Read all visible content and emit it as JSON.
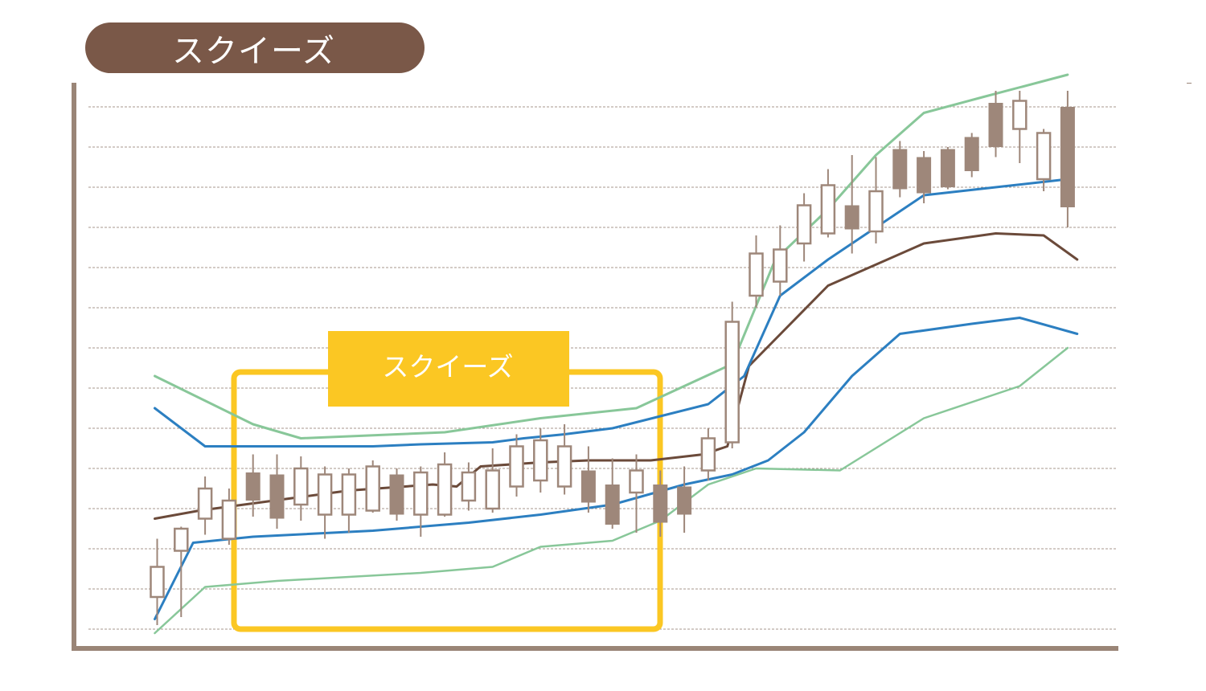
{
  "header": {
    "title": "スクイーズ"
  },
  "annotation": {
    "label": "スクイーズ",
    "frame_color": "#fbc723"
  },
  "colors": {
    "axis": "#9a8577",
    "grid": "#8a7568",
    "candle": "#9e877a",
    "sma": "#6b4a3a",
    "band_1sigma": "#2c7fc1",
    "band_2sigma": "#88c799"
  },
  "chart_data": {
    "type": "candlestick",
    "title": "スクイーズ",
    "xlabel": "",
    "ylabel": "",
    "ylim": [
      0,
      14
    ],
    "grid": true,
    "legend": "none",
    "candles": [
      {
        "x": 1,
        "open": 0.8,
        "close": 1.55,
        "high": 2.25,
        "low": 0.1
      },
      {
        "x": 2,
        "open": 1.95,
        "close": 2.5,
        "high": 2.55,
        "low": 0.3
      },
      {
        "x": 3,
        "open": 2.75,
        "close": 3.5,
        "high": 3.8,
        "low": 2.35
      },
      {
        "x": 4,
        "open": 2.25,
        "close": 3.2,
        "high": 3.5,
        "low": 2.1
      },
      {
        "x": 5,
        "open": 3.9,
        "close": 3.2,
        "high": 4.35,
        "low": 2.8
      },
      {
        "x": 6,
        "open": 3.85,
        "close": 2.75,
        "high": 4.35,
        "low": 2.5
      },
      {
        "x": 7,
        "open": 3.1,
        "close": 4.0,
        "high": 4.3,
        "low": 2.7
      },
      {
        "x": 8,
        "open": 2.85,
        "close": 3.85,
        "high": 4.05,
        "low": 2.25
      },
      {
        "x": 9,
        "open": 2.85,
        "close": 3.85,
        "high": 4.0,
        "low": 2.4
      },
      {
        "x": 10,
        "open": 2.95,
        "close": 4.05,
        "high": 4.2,
        "low": 2.9
      },
      {
        "x": 11,
        "open": 3.85,
        "close": 2.85,
        "high": 4.0,
        "low": 2.7
      },
      {
        "x": 12,
        "open": 2.85,
        "close": 3.9,
        "high": 4.05,
        "low": 2.3
      },
      {
        "x": 13,
        "open": 2.85,
        "close": 4.1,
        "high": 4.4,
        "low": 2.8
      },
      {
        "x": 14,
        "open": 3.2,
        "close": 3.9,
        "high": 4.15,
        "low": 2.95
      },
      {
        "x": 15,
        "open": 3.0,
        "close": 3.95,
        "high": 4.5,
        "low": 2.9
      },
      {
        "x": 16,
        "open": 3.55,
        "close": 4.55,
        "high": 4.85,
        "low": 3.3
      },
      {
        "x": 17,
        "open": 3.7,
        "close": 4.7,
        "high": 5.0,
        "low": 3.4
      },
      {
        "x": 18,
        "open": 3.55,
        "close": 4.55,
        "high": 5.1,
        "low": 3.35
      },
      {
        "x": 19,
        "open": 3.95,
        "close": 3.15,
        "high": 4.55,
        "low": 2.9
      },
      {
        "x": 20,
        "open": 3.6,
        "close": 2.6,
        "high": 4.25,
        "low": 2.5
      },
      {
        "x": 21,
        "open": 3.4,
        "close": 3.95,
        "high": 4.35,
        "low": 2.4
      },
      {
        "x": 22,
        "open": 3.6,
        "close": 2.65,
        "high": 3.95,
        "low": 2.3
      },
      {
        "x": 23,
        "open": 3.55,
        "close": 2.85,
        "high": 4.05,
        "low": 2.4
      },
      {
        "x": 24,
        "open": 3.95,
        "close": 4.75,
        "high": 5.0,
        "low": 3.7
      },
      {
        "x": 25,
        "open": 4.65,
        "close": 7.65,
        "high": 8.15,
        "low": 4.5
      },
      {
        "x": 26,
        "open": 8.3,
        "close": 9.35,
        "high": 9.8,
        "low": 8.0
      },
      {
        "x": 27,
        "open": 8.65,
        "close": 9.45,
        "high": 10.05,
        "low": 8.3
      },
      {
        "x": 28,
        "open": 9.6,
        "close": 10.55,
        "high": 10.85,
        "low": 9.15
      },
      {
        "x": 29,
        "open": 9.85,
        "close": 11.05,
        "high": 11.45,
        "low": 9.75
      },
      {
        "x": 30,
        "open": 10.55,
        "close": 9.95,
        "high": 11.8,
        "low": 9.35
      },
      {
        "x": 31,
        "open": 9.9,
        "close": 10.9,
        "high": 11.75,
        "low": 9.6
      },
      {
        "x": 32,
        "open": 11.95,
        "close": 10.95,
        "high": 12.15,
        "low": 10.75
      },
      {
        "x": 33,
        "open": 11.75,
        "close": 10.85,
        "high": 11.9,
        "low": 10.6
      },
      {
        "x": 34,
        "open": 11.95,
        "close": 11.0,
        "high": 12.0,
        "low": 10.95
      },
      {
        "x": 35,
        "open": 12.25,
        "close": 11.4,
        "high": 12.35,
        "low": 11.25
      },
      {
        "x": 36,
        "open": 13.1,
        "close": 12.0,
        "high": 13.4,
        "low": 11.75
      },
      {
        "x": 37,
        "open": 12.45,
        "close": 13.15,
        "high": 13.4,
        "low": 11.6
      },
      {
        "x": 38,
        "open": 11.2,
        "close": 12.35,
        "high": 12.45,
        "low": 10.9
      },
      {
        "x": 39,
        "open": 13.0,
        "close": 10.5,
        "high": 13.4,
        "low": 10.0
      }
    ],
    "series": [
      {
        "values": [
          [
            0.9,
            2.75
          ],
          [
            2.75,
            2.95
          ],
          [
            4.0,
            3.05
          ],
          [
            6.5,
            3.25
          ],
          [
            9.0,
            3.45
          ],
          [
            12.5,
            3.6
          ],
          [
            13.5,
            3.55
          ],
          [
            14.5,
            4.05
          ],
          [
            17.0,
            4.15
          ],
          [
            19.0,
            4.2
          ],
          [
            21.6,
            4.2
          ],
          [
            23.8,
            4.35
          ],
          [
            24.8,
            4.55
          ],
          [
            25.7,
            6.55
          ],
          [
            29.0,
            8.55
          ],
          [
            33.0,
            9.6
          ],
          [
            36.0,
            9.85
          ],
          [
            38.0,
            9.8
          ],
          [
            39.4,
            9.2
          ]
        ]
      },
      {
        "values": [
          [
            0.9,
            5.5
          ],
          [
            3.0,
            4.55
          ],
          [
            5.0,
            4.55
          ],
          [
            10.0,
            4.55
          ],
          [
            12.0,
            4.6
          ],
          [
            15.0,
            4.65
          ],
          [
            16.3,
            4.75
          ],
          [
            18.0,
            4.85
          ],
          [
            20.0,
            5.0
          ],
          [
            22.0,
            5.3
          ],
          [
            24.0,
            5.6
          ],
          [
            25.5,
            6.3
          ],
          [
            27.0,
            8.3
          ],
          [
            29.0,
            9.2
          ],
          [
            31.0,
            10.0
          ],
          [
            33.0,
            10.8
          ],
          [
            36.0,
            11.0
          ],
          [
            39.0,
            11.2
          ]
        ]
      },
      {
        "values": [
          [
            0.9,
            0.25
          ],
          [
            2.5,
            2.15
          ],
          [
            5.0,
            2.3
          ],
          [
            10.0,
            2.45
          ],
          [
            14.0,
            2.65
          ],
          [
            17.0,
            2.85
          ],
          [
            20.0,
            3.1
          ],
          [
            23.0,
            3.6
          ],
          [
            25.0,
            3.85
          ],
          [
            26.5,
            4.2
          ],
          [
            28.0,
            4.9
          ],
          [
            30.0,
            6.3
          ],
          [
            32.0,
            7.35
          ],
          [
            35.0,
            7.6
          ],
          [
            37.0,
            7.75
          ],
          [
            39.4,
            7.35
          ]
        ]
      },
      {
        "values": [
          [
            0.9,
            6.3
          ],
          [
            5.0,
            5.1
          ],
          [
            7.0,
            4.75
          ],
          [
            13.0,
            4.9
          ],
          [
            17.0,
            5.25
          ],
          [
            21.0,
            5.5
          ],
          [
            25.0,
            6.6
          ],
          [
            26.8,
            9.2
          ],
          [
            29.0,
            10.45
          ],
          [
            31.0,
            11.8
          ],
          [
            33.0,
            12.85
          ],
          [
            35.5,
            13.25
          ],
          [
            39.0,
            13.8
          ]
        ]
      },
      {
        "values": [
          [
            0.9,
            -0.1
          ],
          [
            3.0,
            1.05
          ],
          [
            6.0,
            1.2
          ],
          [
            12.0,
            1.4
          ],
          [
            15.0,
            1.55
          ],
          [
            17.0,
            2.05
          ],
          [
            20.0,
            2.2
          ],
          [
            22.0,
            2.7
          ],
          [
            24.0,
            3.6
          ],
          [
            26.0,
            4.0
          ],
          [
            29.5,
            3.95
          ],
          [
            33.0,
            5.25
          ],
          [
            37.0,
            6.05
          ],
          [
            39.0,
            7.0
          ]
        ]
      }
    ]
  }
}
